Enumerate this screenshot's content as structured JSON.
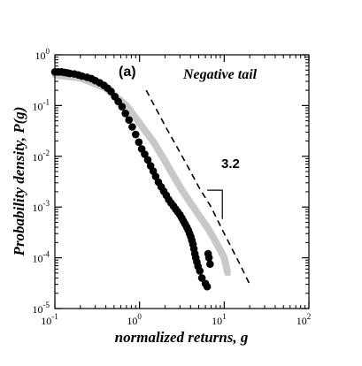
{
  "chart_data": {
    "type": "scatter",
    "panel_label": "(a)",
    "annotation": "Negative tail",
    "slope_label": "3.2",
    "xlabel": "normalized returns, g",
    "ylabel": "Probability density, P(g)",
    "x_scale": "log",
    "y_scale": "log",
    "xlim": [
      0.1,
      100
    ],
    "ylim": [
      1e-05,
      1
    ],
    "x_ticks": [
      {
        "value": 0.1,
        "base": "10",
        "exp": "-1"
      },
      {
        "value": 1,
        "base": "10",
        "exp": "0"
      },
      {
        "value": 10,
        "base": "10",
        "exp": "1"
      },
      {
        "value": 100,
        "base": "10",
        "exp": "2"
      }
    ],
    "y_ticks": [
      {
        "value": 1e-05,
        "base": "10",
        "exp": "-5"
      },
      {
        "value": 0.0001,
        "base": "10",
        "exp": "-4"
      },
      {
        "value": 0.001,
        "base": "10",
        "exp": "-3"
      },
      {
        "value": 0.01,
        "base": "10",
        "exp": "-2"
      },
      {
        "value": 0.1,
        "base": "10",
        "exp": "-1"
      },
      {
        "value": 1,
        "base": "10",
        "exp": "0"
      }
    ],
    "colors": {
      "dots": "#000000",
      "gray": "#c8c8c8",
      "fit": "#000000"
    },
    "series": [
      {
        "style": "black-circles",
        "x": [
          0.1,
          0.11,
          0.12,
          0.13,
          0.14,
          0.15,
          0.17,
          0.19,
          0.21,
          0.24,
          0.27,
          0.3,
          0.34,
          0.38,
          0.42,
          0.46,
          0.51,
          0.56,
          0.62,
          0.68,
          0.75,
          0.82,
          0.9,
          0.98,
          1.06,
          1.15,
          1.25,
          1.35,
          1.45,
          1.55,
          1.67,
          1.8,
          1.93,
          2.07,
          2.21,
          2.36,
          2.52,
          2.67,
          2.83,
          3.0,
          3.15,
          3.3,
          3.46,
          3.62,
          3.76,
          3.9,
          4.03,
          4.15,
          4.27,
          4.38,
          4.5,
          4.62,
          4.75,
          4.9,
          5.15,
          5.45,
          6.0,
          6.3,
          6.45,
          6.6,
          6.8
        ],
        "y": [
          0.46,
          0.46,
          0.46,
          0.45,
          0.44,
          0.43,
          0.42,
          0.4,
          0.38,
          0.36,
          0.34,
          0.31,
          0.28,
          0.25,
          0.22,
          0.19,
          0.15,
          0.12,
          0.095,
          0.07,
          0.052,
          0.038,
          0.027,
          0.019,
          0.014,
          0.011,
          0.0085,
          0.0065,
          0.0051,
          0.004,
          0.0031,
          0.0025,
          0.00205,
          0.0017,
          0.0014,
          0.0012,
          0.00104,
          0.00091,
          0.0008,
          0.0007,
          0.00061,
          0.00053,
          0.00046,
          0.0004,
          0.00035,
          0.0003,
          0.00026,
          0.00022,
          0.000185,
          0.00015,
          0.00012,
          0.0001,
          8.3e-05,
          6.8e-05,
          5.5e-05,
          4e-05,
          3.1e-05,
          2.7e-05,
          0.00012,
          0.0001,
          7.5e-05
        ]
      },
      {
        "style": "gray-band",
        "x": [
          0.1,
          0.2,
          0.4,
          0.7,
          1.0,
          1.5,
          2.0,
          3.0,
          4.0,
          5.0,
          6.0,
          7.0,
          8.0,
          9.0,
          10.0,
          11.0
        ],
        "y": [
          0.4,
          0.35,
          0.22,
          0.1,
          0.045,
          0.018,
          0.008,
          0.0025,
          0.0012,
          0.0007,
          0.00045,
          0.0003,
          0.0002,
          0.00014,
          0.0001,
          5e-05
        ]
      },
      {
        "style": "dashed-fit",
        "x": [
          1.2,
          2,
          3,
          4,
          5,
          7,
          10,
          15,
          20
        ],
        "y": [
          0.2,
          0.04,
          0.012,
          0.005,
          0.0025,
          0.001,
          0.0003,
          8e-05,
          3e-05
        ]
      }
    ],
    "slope_triangle": {
      "x_left": 6.3,
      "x_right": 9.5,
      "y_top": 0.00215,
      "y_bottom": 0.00058
    }
  }
}
